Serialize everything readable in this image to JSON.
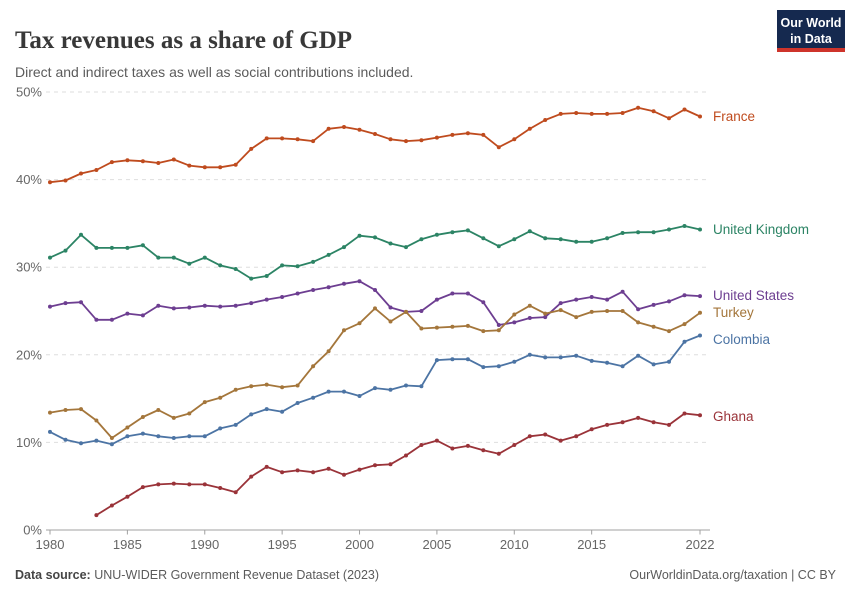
{
  "header": {
    "title": "Tax revenues as a share of GDP",
    "subtitle": "Direct and indirect taxes as well as social contributions included.",
    "logo": {
      "line1": "Our World",
      "line2": "in Data",
      "bg_color": "#15294F",
      "bar_color": "#CE342B"
    }
  },
  "footer": {
    "datasource_label": "Data source:",
    "datasource_text": " UNU-WIDER Government Revenue Dataset (2023)",
    "attribution": "OurWorldinData.org/taxation | CC BY"
  },
  "chart_data": {
    "type": "line",
    "title": "Tax revenues as a share of GDP",
    "xlabel": "",
    "ylabel": "",
    "xlim": [
      1980,
      2022
    ],
    "ylim": [
      0,
      50
    ],
    "grid": "horizontal-dashed",
    "legend_position": "right-end-labels",
    "grid_color": "#dedede",
    "axis_color": "#a0a0a0",
    "tick_text_color": "#666666",
    "x_ticks": [
      {
        "value": 1980,
        "label": "1980"
      },
      {
        "value": 1985,
        "label": "1985"
      },
      {
        "value": 1990,
        "label": "1990"
      },
      {
        "value": 1995,
        "label": "1995"
      },
      {
        "value": 2000,
        "label": "2000"
      },
      {
        "value": 2005,
        "label": "2005"
      },
      {
        "value": 2010,
        "label": "2010"
      },
      {
        "value": 2015,
        "label": "2015"
      },
      {
        "value": 2022,
        "label": "2022"
      }
    ],
    "y_ticks": [
      {
        "value": 0,
        "label": "0%"
      },
      {
        "value": 10,
        "label": "10%"
      },
      {
        "value": 20,
        "label": "20%"
      },
      {
        "value": 30,
        "label": "30%"
      },
      {
        "value": 40,
        "label": "40%"
      },
      {
        "value": 50,
        "label": "50%"
      }
    ],
    "series": [
      {
        "id": "france",
        "name": "France",
        "color": "#BF4B1E",
        "start_year": 1980,
        "values": [
          39.7,
          39.9,
          40.7,
          41.1,
          42.0,
          42.2,
          42.1,
          41.9,
          42.3,
          41.6,
          41.4,
          41.4,
          41.7,
          43.5,
          44.7,
          44.7,
          44.6,
          44.4,
          45.8,
          46.0,
          45.7,
          45.2,
          44.6,
          44.4,
          44.5,
          44.8,
          45.1,
          45.3,
          45.1,
          43.7,
          44.6,
          45.8,
          46.8,
          47.5,
          47.6,
          47.5,
          47.5,
          47.6,
          48.2,
          47.8,
          47.0,
          48.0,
          47.2
        ]
      },
      {
        "id": "united-kingdom",
        "name": "United Kingdom",
        "color": "#2C8465",
        "start_year": 1980,
        "values": [
          31.1,
          31.9,
          33.7,
          32.2,
          32.2,
          32.2,
          32.5,
          31.1,
          31.1,
          30.4,
          31.1,
          30.2,
          29.8,
          28.7,
          29.0,
          30.2,
          30.1,
          30.6,
          31.4,
          32.3,
          33.6,
          33.4,
          32.7,
          32.3,
          33.2,
          33.7,
          34.0,
          34.2,
          33.3,
          32.4,
          33.2,
          34.1,
          33.3,
          33.2,
          32.9,
          32.9,
          33.3,
          33.9,
          34.0,
          34.0,
          34.3,
          34.7,
          34.3
        ]
      },
      {
        "id": "united-states",
        "name": "United States",
        "color": "#6D3E91",
        "start_year": 1980,
        "values": [
          25.5,
          25.9,
          26.0,
          24.0,
          24.0,
          24.7,
          24.5,
          25.6,
          25.3,
          25.4,
          25.6,
          25.5,
          25.6,
          25.9,
          26.3,
          26.6,
          27.0,
          27.4,
          27.7,
          28.1,
          28.4,
          27.4,
          25.4,
          24.9,
          25.0,
          26.3,
          27.0,
          27.0,
          26.0,
          23.4,
          23.7,
          24.2,
          24.3,
          25.9,
          26.3,
          26.6,
          26.3,
          27.2,
          25.2,
          25.7,
          26.1,
          26.8,
          26.7
        ]
      },
      {
        "id": "turkey",
        "name": "Turkey",
        "color": "#A4763B",
        "start_year": 1980,
        "values": [
          13.4,
          13.7,
          13.8,
          12.5,
          10.5,
          11.7,
          12.9,
          13.7,
          12.8,
          13.3,
          14.6,
          15.1,
          16.0,
          16.4,
          16.6,
          16.3,
          16.5,
          18.7,
          20.4,
          22.8,
          23.6,
          25.3,
          23.8,
          24.9,
          23.0,
          23.1,
          23.2,
          23.3,
          22.7,
          22.8,
          24.6,
          25.6,
          24.7,
          25.1,
          24.3,
          24.9,
          25.0,
          25.0,
          23.7,
          23.2,
          22.7,
          23.5,
          24.8
        ]
      },
      {
        "id": "colombia",
        "name": "Colombia",
        "color": "#4C74A4",
        "start_year": 1980,
        "values": [
          11.2,
          10.3,
          9.9,
          10.2,
          9.8,
          10.7,
          11.0,
          10.7,
          10.5,
          10.7,
          10.7,
          11.6,
          12.0,
          13.2,
          13.8,
          13.5,
          14.5,
          15.1,
          15.8,
          15.8,
          15.3,
          16.2,
          16.0,
          16.5,
          16.4,
          19.4,
          19.5,
          19.5,
          18.6,
          18.7,
          19.2,
          20.0,
          19.7,
          19.7,
          19.9,
          19.3,
          19.1,
          18.7,
          19.9,
          18.9,
          19.2,
          21.5,
          22.2
        ]
      },
      {
        "id": "ghana",
        "name": "Ghana",
        "color": "#9A3339",
        "start_year": 1983,
        "values": [
          1.7,
          2.8,
          3.8,
          4.9,
          5.2,
          5.3,
          5.2,
          5.2,
          4.8,
          4.3,
          6.1,
          7.2,
          6.6,
          6.8,
          6.6,
          7.0,
          6.3,
          6.9,
          7.4,
          7.5,
          8.5,
          9.7,
          10.2,
          9.3,
          9.6,
          9.1,
          8.7,
          9.7,
          10.7,
          10.9,
          10.2,
          10.7,
          11.5,
          12.0,
          12.3,
          12.8,
          12.3,
          12.0,
          13.3,
          13.1
        ]
      }
    ]
  }
}
